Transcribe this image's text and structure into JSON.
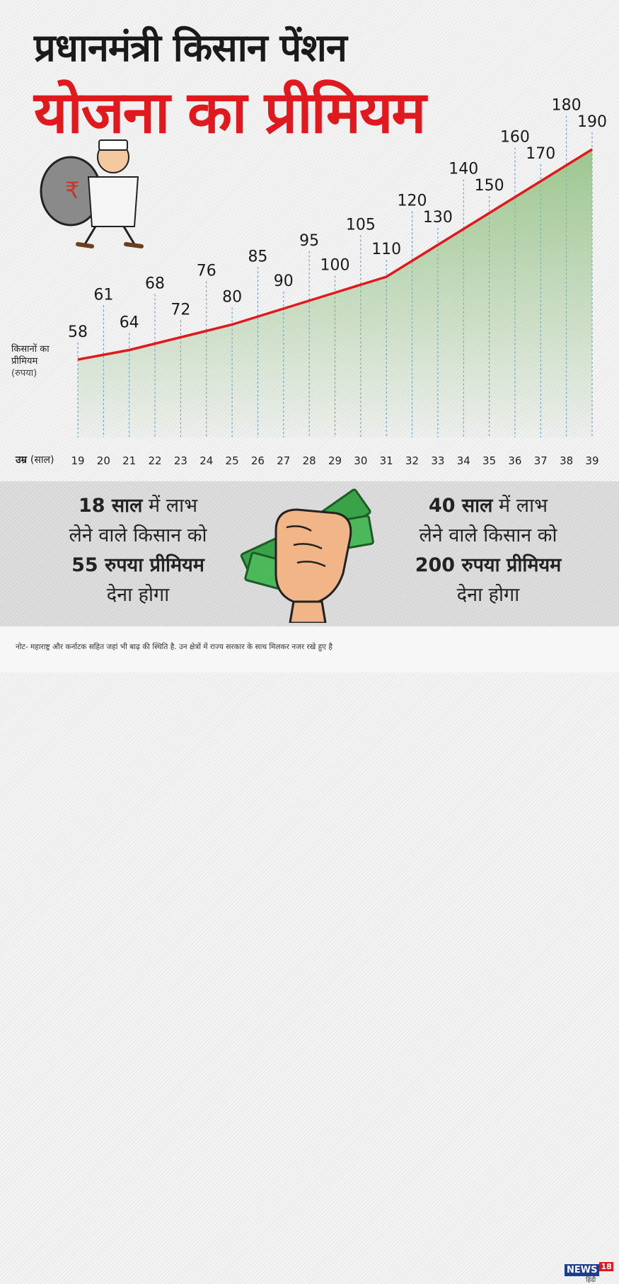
{
  "title": {
    "line1": "प्रधानमंत्री किसान पेंशन",
    "line2": "योजना का प्रीमियम"
  },
  "chart_data": {
    "type": "area",
    "title": "प्रधानमंत्री किसान पेंशन योजना का प्रीमियम",
    "ylabel": "किसानों का प्रीमियम",
    "ylabel_unit": "(रुपया)",
    "xlabel": "उम्र",
    "xlabel_unit": "(साल)",
    "x": [
      19,
      20,
      21,
      22,
      23,
      24,
      25,
      26,
      27,
      28,
      29,
      30,
      31,
      32,
      33,
      34,
      35,
      36,
      37,
      38,
      39
    ],
    "values": [
      58,
      61,
      64,
      68,
      72,
      76,
      80,
      85,
      90,
      95,
      100,
      105,
      110,
      120,
      130,
      140,
      150,
      160,
      170,
      180,
      190
    ],
    "line_color": "#e0191e",
    "fill_color": "#8fbf7f"
  },
  "messages": {
    "left": {
      "bold1": "18 साल",
      "text1": " में लाभ",
      "line2": "लेने वाले किसान को",
      "bold3": "55 रुपया प्रीमियम",
      "line4": "देना होगा"
    },
    "right": {
      "bold1": "40 साल",
      "text1": " में लाभ",
      "line2": "लेने वाले किसान को",
      "bold3": "200 रुपया प्रीमियम",
      "line4": "देना होगा"
    }
  },
  "note": "नोट- महाराष्ट्र और कर्नाटक सहित जहां भी बाढ़ की स्थिति है. उन क्षेत्रों में राज्य सरकार के साथ मिलकर नजर रखे हुए है",
  "logo": {
    "brand": "NEWS",
    "number": "18",
    "sub": "हिंदी"
  }
}
